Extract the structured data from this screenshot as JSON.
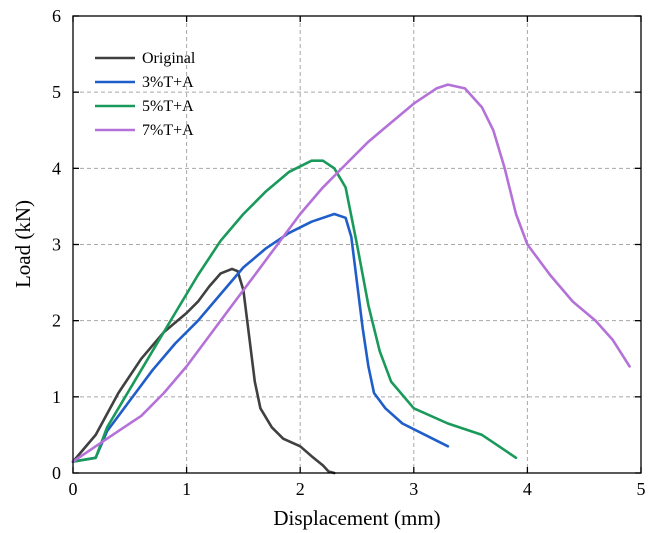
{
  "chart_data": {
    "type": "line",
    "xlabel": "Displacement (mm)",
    "ylabel": "Load (kN)",
    "xlim": [
      0,
      5
    ],
    "ylim": [
      0,
      6
    ],
    "x_ticks": [
      "0",
      "1",
      "2",
      "3",
      "4",
      "5"
    ],
    "y_ticks": [
      "0",
      "1",
      "2",
      "3",
      "4",
      "5",
      "6"
    ],
    "grid": true,
    "legend_position": "top-left",
    "series": [
      {
        "name": "Original",
        "color": "#404040",
        "points": [
          [
            0,
            0.15
          ],
          [
            0.2,
            0.5
          ],
          [
            0.4,
            1.05
          ],
          [
            0.6,
            1.5
          ],
          [
            0.8,
            1.85
          ],
          [
            1.0,
            2.1
          ],
          [
            1.1,
            2.25
          ],
          [
            1.2,
            2.45
          ],
          [
            1.3,
            2.62
          ],
          [
            1.4,
            2.68
          ],
          [
            1.45,
            2.65
          ],
          [
            1.5,
            2.4
          ],
          [
            1.55,
            1.8
          ],
          [
            1.6,
            1.2
          ],
          [
            1.65,
            0.85
          ],
          [
            1.75,
            0.6
          ],
          [
            1.85,
            0.45
          ],
          [
            2.0,
            0.35
          ],
          [
            2.1,
            0.22
          ],
          [
            2.2,
            0.1
          ],
          [
            2.25,
            0.02
          ],
          [
            2.3,
            0.0
          ]
        ]
      },
      {
        "name": "3%T+A",
        "color": "#1f5ec9",
        "points": [
          [
            0,
            0.15
          ],
          [
            0.2,
            0.2
          ],
          [
            0.3,
            0.55
          ],
          [
            0.5,
            0.95
          ],
          [
            0.7,
            1.35
          ],
          [
            0.9,
            1.7
          ],
          [
            1.1,
            2.0
          ],
          [
            1.3,
            2.35
          ],
          [
            1.5,
            2.7
          ],
          [
            1.7,
            2.95
          ],
          [
            1.9,
            3.15
          ],
          [
            2.1,
            3.3
          ],
          [
            2.3,
            3.4
          ],
          [
            2.4,
            3.35
          ],
          [
            2.45,
            3.1
          ],
          [
            2.5,
            2.5
          ],
          [
            2.55,
            1.9
          ],
          [
            2.6,
            1.4
          ],
          [
            2.65,
            1.05
          ],
          [
            2.75,
            0.85
          ],
          [
            2.9,
            0.65
          ],
          [
            3.1,
            0.5
          ],
          [
            3.3,
            0.35
          ]
        ]
      },
      {
        "name": "5%T+A",
        "color": "#1a9a5a",
        "points": [
          [
            0,
            0.15
          ],
          [
            0.2,
            0.2
          ],
          [
            0.3,
            0.6
          ],
          [
            0.5,
            1.1
          ],
          [
            0.7,
            1.6
          ],
          [
            0.9,
            2.1
          ],
          [
            1.1,
            2.6
          ],
          [
            1.3,
            3.05
          ],
          [
            1.5,
            3.4
          ],
          [
            1.7,
            3.7
          ],
          [
            1.9,
            3.95
          ],
          [
            2.1,
            4.1
          ],
          [
            2.2,
            4.1
          ],
          [
            2.3,
            4.0
          ],
          [
            2.4,
            3.75
          ],
          [
            2.5,
            3.0
          ],
          [
            2.6,
            2.2
          ],
          [
            2.7,
            1.6
          ],
          [
            2.8,
            1.2
          ],
          [
            3.0,
            0.85
          ],
          [
            3.3,
            0.65
          ],
          [
            3.6,
            0.5
          ],
          [
            3.75,
            0.35
          ],
          [
            3.9,
            0.2
          ]
        ]
      },
      {
        "name": "7%T+A",
        "color": "#b472d8",
        "points": [
          [
            0,
            0.15
          ],
          [
            0.2,
            0.35
          ],
          [
            0.4,
            0.55
          ],
          [
            0.6,
            0.75
          ],
          [
            0.8,
            1.05
          ],
          [
            1.0,
            1.4
          ],
          [
            1.2,
            1.8
          ],
          [
            1.4,
            2.2
          ],
          [
            1.6,
            2.6
          ],
          [
            1.8,
            3.0
          ],
          [
            2.0,
            3.4
          ],
          [
            2.2,
            3.75
          ],
          [
            2.4,
            4.05
          ],
          [
            2.6,
            4.35
          ],
          [
            2.8,
            4.6
          ],
          [
            3.0,
            4.85
          ],
          [
            3.2,
            5.05
          ],
          [
            3.3,
            5.1
          ],
          [
            3.45,
            5.05
          ],
          [
            3.6,
            4.8
          ],
          [
            3.7,
            4.5
          ],
          [
            3.8,
            4.0
          ],
          [
            3.9,
            3.4
          ],
          [
            4.0,
            3.0
          ],
          [
            4.2,
            2.6
          ],
          [
            4.4,
            2.25
          ],
          [
            4.6,
            2.0
          ],
          [
            4.75,
            1.75
          ],
          [
            4.9,
            1.4
          ]
        ]
      }
    ]
  }
}
